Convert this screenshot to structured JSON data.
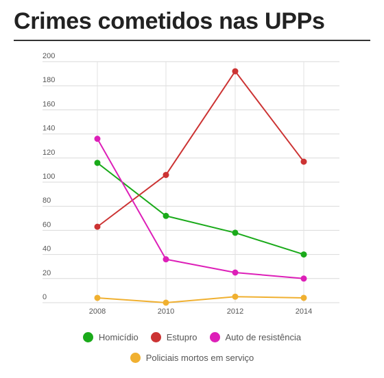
{
  "title": "Crimes cometidos nas UPPs",
  "chart_data": {
    "type": "line",
    "title": "Crimes cometidos nas UPPs",
    "xlabel": "",
    "ylabel": "",
    "x": [
      "2008",
      "2010",
      "2012",
      "2014"
    ],
    "yticks": [
      "0",
      "20",
      "40",
      "60",
      "80",
      "100",
      "120",
      "140",
      "160",
      "180",
      "200"
    ],
    "ylim": [
      0,
      200
    ],
    "grid": true,
    "legend_position": "bottom",
    "series": [
      {
        "name": "Homicídio",
        "color": "#1aaa1a",
        "values": [
          116,
          72,
          58,
          40
        ]
      },
      {
        "name": "Estupro",
        "color": "#cc3333",
        "values": [
          63,
          106,
          192,
          117
        ]
      },
      {
        "name": "Auto de resistência",
        "color": "#dd1fb8",
        "values": [
          136,
          36,
          25,
          20
        ]
      },
      {
        "name": "Policiais mortos em serviço",
        "color": "#f0b030",
        "values": [
          4,
          0,
          5,
          4
        ]
      }
    ]
  }
}
